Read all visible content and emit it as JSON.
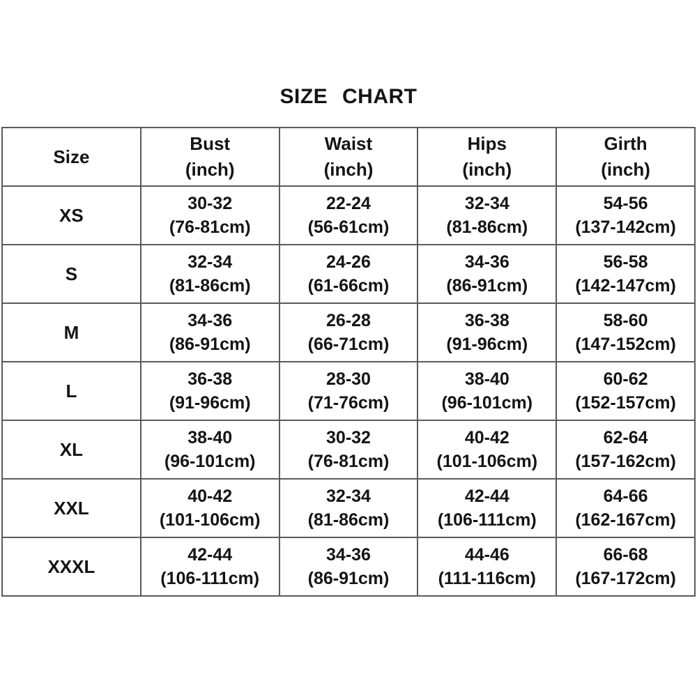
{
  "title": "SIZE  CHART",
  "colors": {
    "background": "#ffffff",
    "text": "#141414",
    "border": "#5a5a5a"
  },
  "table": {
    "header": [
      {
        "key": "size",
        "lines": [
          "Size"
        ]
      },
      {
        "key": "bust",
        "lines": [
          "Bust",
          "(inch)"
        ]
      },
      {
        "key": "waist",
        "lines": [
          "Waist",
          "(inch)"
        ]
      },
      {
        "key": "hips",
        "lines": [
          "Hips",
          "(inch)"
        ]
      },
      {
        "key": "girth",
        "lines": [
          "Girth",
          "(inch)"
        ]
      }
    ],
    "rows": [
      {
        "key": "xs",
        "cells": [
          [
            "XS"
          ],
          [
            "30-32",
            "(76-81cm)"
          ],
          [
            "22-24",
            "(56-61cm)"
          ],
          [
            "32-34",
            "(81-86cm)"
          ],
          [
            "54-56",
            "(137-142cm)"
          ]
        ]
      },
      {
        "key": "s",
        "cells": [
          [
            "S"
          ],
          [
            "32-34",
            "(81-86cm)"
          ],
          [
            "24-26",
            "(61-66cm)"
          ],
          [
            "34-36",
            "(86-91cm)"
          ],
          [
            "56-58",
            "(142-147cm)"
          ]
        ]
      },
      {
        "key": "m",
        "cells": [
          [
            "M"
          ],
          [
            "34-36",
            "(86-91cm)"
          ],
          [
            "26-28",
            "(66-71cm)"
          ],
          [
            "36-38",
            "(91-96cm)"
          ],
          [
            "58-60",
            "(147-152cm)"
          ]
        ]
      },
      {
        "key": "l",
        "cells": [
          [
            "L"
          ],
          [
            "36-38",
            "(91-96cm)"
          ],
          [
            "28-30",
            "(71-76cm)"
          ],
          [
            "38-40",
            "(96-101cm)"
          ],
          [
            "60-62",
            "(152-157cm)"
          ]
        ]
      },
      {
        "key": "xl",
        "cells": [
          [
            "XL"
          ],
          [
            "38-40",
            "(96-101cm)"
          ],
          [
            "30-32",
            "(76-81cm)"
          ],
          [
            "40-42",
            "(101-106cm)"
          ],
          [
            "62-64",
            "(157-162cm)"
          ]
        ]
      },
      {
        "key": "xxl",
        "cells": [
          [
            "XXL"
          ],
          [
            "40-42",
            "(101-106cm)"
          ],
          [
            "32-34",
            "(81-86cm)"
          ],
          [
            "42-44",
            "(106-111cm)"
          ],
          [
            "64-66",
            "(162-167cm)"
          ]
        ]
      },
      {
        "key": "xxxl",
        "cells": [
          [
            "XXXL"
          ],
          [
            "42-44",
            "(106-111cm)"
          ],
          [
            "34-36",
            "(86-91cm)"
          ],
          [
            "44-46",
            "(111-116cm)"
          ],
          [
            "66-68",
            "(167-172cm)"
          ]
        ]
      }
    ]
  },
  "chart_data": {
    "type": "table",
    "title": "SIZE CHART",
    "columns": [
      "Size",
      "Bust (inch)",
      "Waist (inch)",
      "Hips (inch)",
      "Girth (inch)"
    ],
    "rows": [
      [
        "XS",
        "30-32 (76-81cm)",
        "22-24 (56-61cm)",
        "32-34 (81-86cm)",
        "54-56 (137-142cm)"
      ],
      [
        "S",
        "32-34 (81-86cm)",
        "24-26 (61-66cm)",
        "34-36 (86-91cm)",
        "56-58 (142-147cm)"
      ],
      [
        "M",
        "34-36 (86-91cm)",
        "26-28 (66-71cm)",
        "36-38 (91-96cm)",
        "58-60 (147-152cm)"
      ],
      [
        "L",
        "36-38 (91-96cm)",
        "28-30 (71-76cm)",
        "38-40 (96-101cm)",
        "60-62 (152-157cm)"
      ],
      [
        "XL",
        "38-40 (96-101cm)",
        "30-32 (76-81cm)",
        "40-42 (101-106cm)",
        "62-64 (157-162cm)"
      ],
      [
        "XXL",
        "40-42 (101-106cm)",
        "32-34 (81-86cm)",
        "42-44 (106-111cm)",
        "64-66 (162-167cm)"
      ],
      [
        "XXXL",
        "42-44 (106-111cm)",
        "34-36 (86-91cm)",
        "44-46 (111-116cm)",
        "66-68 (167-172cm)"
      ]
    ]
  }
}
